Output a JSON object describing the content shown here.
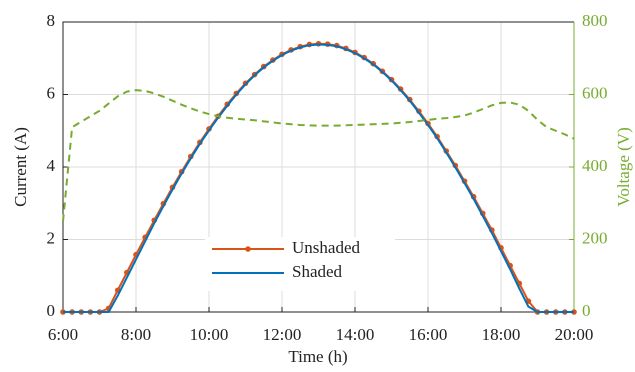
{
  "chart_data": {
    "type": "line",
    "xlabel": "Time (h)",
    "ylabel": "Current (A)",
    "y2label": "Voltage (V)",
    "xlim": [
      6,
      20
    ],
    "ylim": [
      0,
      8
    ],
    "y2lim": [
      0,
      800
    ],
    "xticks": [
      {
        "value": 6,
        "label": "6:00"
      },
      {
        "value": 8,
        "label": "8:00"
      },
      {
        "value": 10,
        "label": "10:00"
      },
      {
        "value": 12,
        "label": "12:00"
      },
      {
        "value": 14,
        "label": "14:00"
      },
      {
        "value": 16,
        "label": "16:00"
      },
      {
        "value": 18,
        "label": "18:00"
      },
      {
        "value": 20,
        "label": "20:00"
      }
    ],
    "yticks": [
      0,
      2,
      4,
      6,
      8
    ],
    "y2ticks": [
      0,
      200,
      400,
      600,
      800
    ],
    "grid": true,
    "y2color": "#77ac30",
    "x": [
      6,
      6.25,
      6.5,
      6.75,
      7,
      7.25,
      7.5,
      7.75,
      8,
      8.25,
      8.5,
      8.75,
      9,
      9.25,
      9.5,
      9.75,
      10,
      10.25,
      10.5,
      10.75,
      11,
      11.25,
      11.5,
      11.75,
      12,
      12.25,
      12.5,
      12.75,
      13,
      13.25,
      13.5,
      13.75,
      14,
      14.25,
      14.5,
      14.75,
      15,
      15.25,
      15.5,
      15.75,
      16,
      16.25,
      16.5,
      16.75,
      17,
      17.25,
      17.5,
      17.75,
      18,
      18.25,
      18.5,
      18.75,
      19,
      19.25,
      19.5,
      19.75,
      20
    ],
    "series": [
      {
        "name": "Unshaded",
        "color": "#d95319",
        "markers": true,
        "values": [
          0,
          0,
          0,
          0,
          0,
          0.1,
          0.6,
          1.09,
          1.58,
          2.06,
          2.53,
          2.99,
          3.44,
          3.87,
          4.29,
          4.68,
          5.05,
          5.4,
          5.73,
          6.03,
          6.31,
          6.55,
          6.77,
          6.95,
          7.11,
          7.23,
          7.32,
          7.38,
          7.4,
          7.39,
          7.35,
          7.27,
          7.16,
          7.02,
          6.85,
          6.64,
          6.41,
          6.15,
          5.86,
          5.54,
          5.2,
          4.84,
          4.44,
          4.04,
          3.61,
          3.18,
          2.72,
          2.26,
          1.77,
          1.28,
          0.79,
          0.3,
          0,
          0,
          0,
          0,
          0
        ]
      },
      {
        "name": "Shaded",
        "color": "#0072bd",
        "markers": false,
        "values": [
          0,
          0,
          0,
          0,
          0,
          0,
          0.45,
          0.95,
          1.45,
          1.95,
          2.45,
          2.92,
          3.38,
          3.82,
          4.24,
          4.64,
          5.01,
          5.36,
          5.69,
          6.0,
          6.28,
          6.53,
          6.75,
          6.93,
          7.09,
          7.21,
          7.3,
          7.36,
          7.38,
          7.37,
          7.33,
          7.25,
          7.14,
          7.0,
          6.83,
          6.62,
          6.39,
          6.12,
          5.83,
          5.5,
          5.16,
          4.8,
          4.4,
          3.99,
          3.56,
          3.12,
          2.65,
          2.18,
          1.68,
          1.18,
          0.65,
          0.15,
          0,
          0,
          0,
          0,
          0
        ]
      },
      {
        "color": "#77ac30",
        "axis": "y2",
        "linestyle": "dashed",
        "markers": false,
        "values": [
          250,
          510,
          525,
          540,
          555,
          575,
          595,
          608,
          612,
          610,
          603,
          594,
          583,
          572,
          562,
          553,
          546,
          540,
          536,
          533,
          531,
          529,
          526,
          523,
          520,
          518,
          516,
          515,
          514,
          514,
          514,
          515,
          516,
          517,
          518,
          519,
          520,
          522,
          524,
          527,
          530,
          533,
          535,
          538,
          542,
          550,
          560,
          570,
          577,
          578,
          572,
          555,
          530,
          510,
          500,
          490,
          478
        ]
      }
    ]
  }
}
